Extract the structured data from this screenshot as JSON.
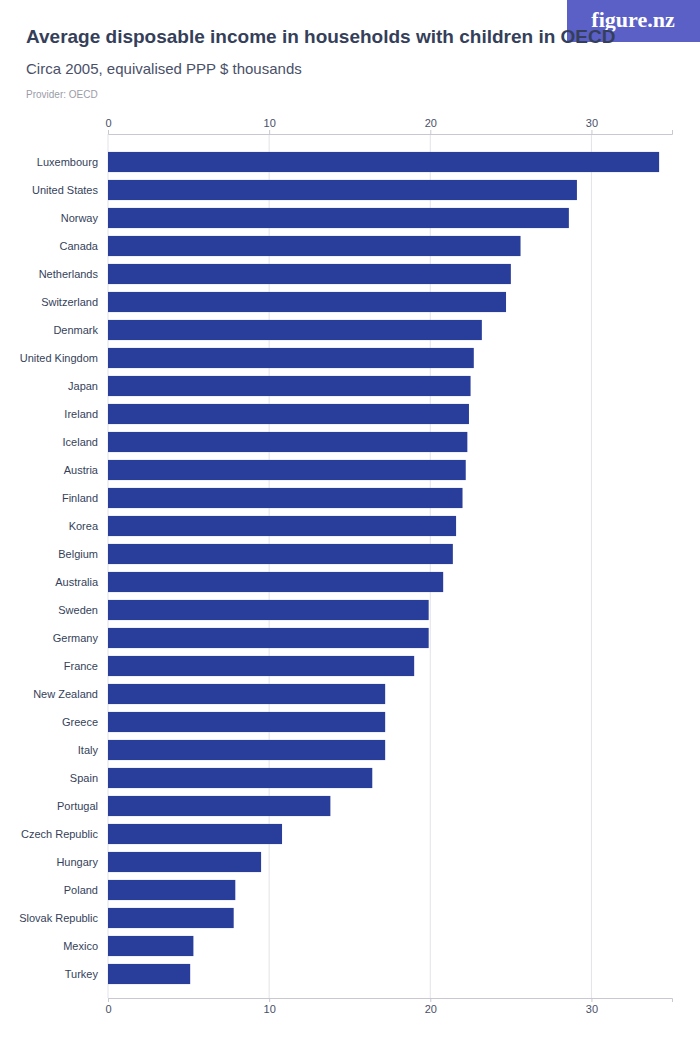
{
  "chart_data": {
    "type": "bar",
    "orientation": "horizontal",
    "title": "Average disposable income in households with children in OECD",
    "subtitle": "Circa 2005, equivalised PPP $ thousands",
    "source": "Provider: OECD",
    "logo": "figure.nz",
    "categories": [
      "Luxembourg",
      "United States",
      "Norway",
      "Canada",
      "Netherlands",
      "Switzerland",
      "Denmark",
      "United Kingdom",
      "Japan",
      "Ireland",
      "Iceland",
      "Austria",
      "Finland",
      "Korea",
      "Belgium",
      "Australia",
      "Sweden",
      "Germany",
      "France",
      "New Zealand",
      "Greece",
      "Italy",
      "Spain",
      "Portugal",
      "Czech Republic",
      "Hungary",
      "Poland",
      "Slovak Republic",
      "Mexico",
      "Turkey"
    ],
    "values": [
      34.2,
      29.1,
      28.6,
      25.6,
      25.0,
      24.7,
      23.2,
      22.7,
      22.5,
      22.4,
      22.3,
      22.2,
      22.0,
      21.6,
      21.4,
      20.8,
      19.9,
      19.9,
      19.0,
      17.2,
      17.2,
      17.2,
      16.4,
      13.8,
      10.8,
      9.5,
      7.9,
      7.8,
      5.3,
      5.1
    ],
    "color": "#293d9b",
    "xlim": [
      0,
      35
    ],
    "xticks": [
      0,
      10,
      20,
      30
    ],
    "grid": true
  }
}
